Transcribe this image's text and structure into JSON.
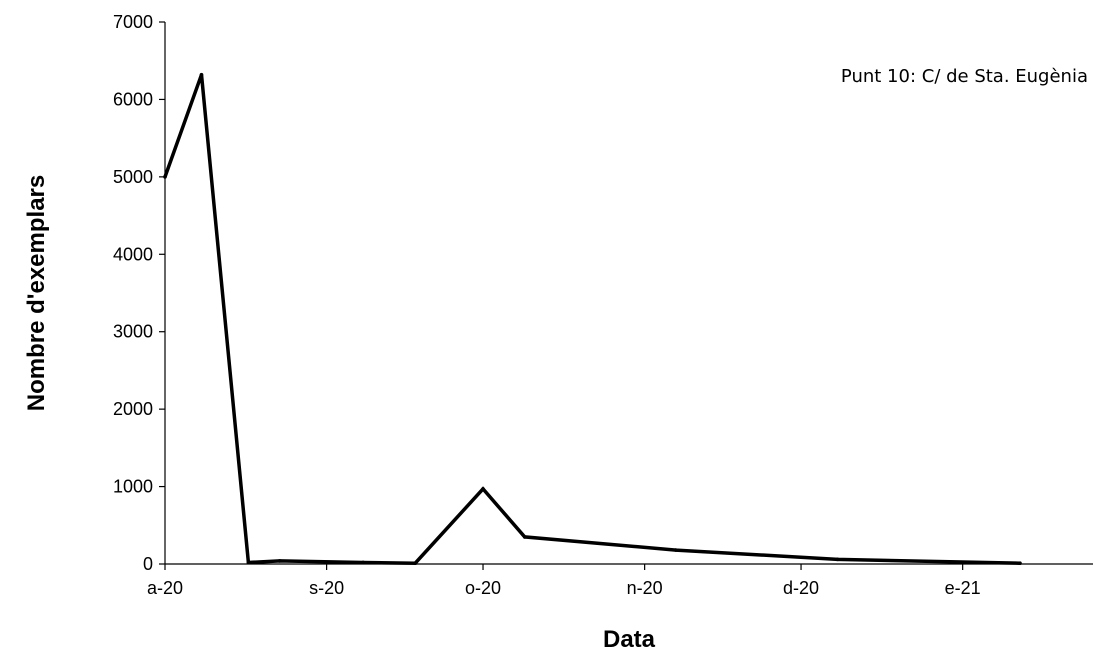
{
  "chart_data": {
    "type": "line",
    "title": "",
    "annotation": "Punt 10: C/ de Sta. Eugènia",
    "xlabel": "Data",
    "ylabel": "Nombre d'exemplars",
    "ylim": [
      0,
      7000
    ],
    "y_ticks": [
      0,
      1000,
      2000,
      3000,
      4000,
      5000,
      6000,
      7000
    ],
    "y_tick_labels": [
      "0",
      "1000",
      "2000",
      "3000",
      "4000",
      "5000",
      "6000",
      "7000"
    ],
    "x_ticks": [
      "2020-08-01",
      "2020-09-01",
      "2020-10-01",
      "2020-11-01",
      "2020-12-01",
      "2021-01-01"
    ],
    "x_tick_labels": [
      "a-20",
      "s-20",
      "o-20",
      "n-20",
      "d-20",
      "e-21"
    ],
    "xlim": [
      "2020-08-01",
      "2021-01-26"
    ],
    "grid": false,
    "legend": "none",
    "series": [
      {
        "color": "#000000",
        "points": [
          {
            "x": "2020-08-01",
            "y": 5000
          },
          {
            "x": "2020-08-08",
            "y": 6320
          },
          {
            "x": "2020-08-17",
            "y": 20
          },
          {
            "x": "2020-08-23",
            "y": 40
          },
          {
            "x": "2020-09-08",
            "y": 20
          },
          {
            "x": "2020-09-18",
            "y": 10
          },
          {
            "x": "2020-10-01",
            "y": 970
          },
          {
            "x": "2020-10-09",
            "y": 350
          },
          {
            "x": "2020-11-07",
            "y": 180
          },
          {
            "x": "2020-12-08",
            "y": 60
          },
          {
            "x": "2021-01-12",
            "y": 10
          }
        ]
      }
    ]
  }
}
